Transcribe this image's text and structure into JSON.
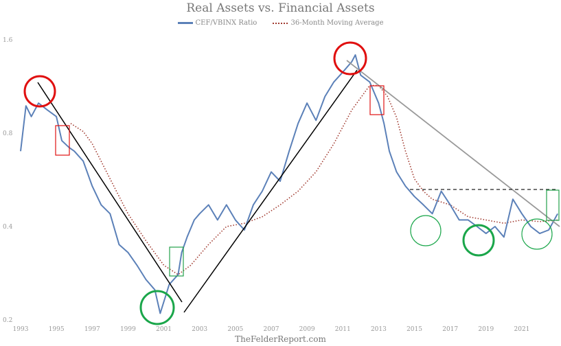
{
  "chart_data": {
    "type": "line",
    "title": "Real Assets vs. Financial Assets",
    "source": "TheFelderReport.com",
    "y_scale": "log",
    "ylim": [
      0.2,
      1.6
    ],
    "xlim": [
      1993,
      2023.1
    ],
    "y_ticks": [
      "1.6",
      "0.8",
      "0.4",
      "0.2"
    ],
    "x_ticks": [
      "1993",
      "1995",
      "1997",
      "1999",
      "2001",
      "2003",
      "2005",
      "2007",
      "2009",
      "2011",
      "2013",
      "2015",
      "2017",
      "2019",
      "2021"
    ],
    "legend_position": "top",
    "grid": false,
    "series": [
      {
        "name": "CEF/VBINX Ratio",
        "color": "#5b80b8",
        "x": [
          1993.0,
          1993.3,
          1993.6,
          1994.0,
          1994.5,
          1995.0,
          1995.3,
          1995.7,
          1996.0,
          1996.5,
          1997.0,
          1997.5,
          1998.0,
          1998.5,
          1999.0,
          1999.5,
          2000.0,
          2000.5,
          2000.8,
          2001.3,
          2001.8,
          2002.0,
          2002.3,
          2002.7,
          2003.0,
          2003.5,
          2004.0,
          2004.5,
          2005.0,
          2005.5,
          2006.0,
          2006.5,
          2007.0,
          2007.5,
          2008.0,
          2008.5,
          2009.0,
          2009.5,
          2010.0,
          2010.5,
          2011.0,
          2011.5,
          2011.7,
          2012.0,
          2012.5,
          2013.0,
          2013.3,
          2013.6,
          2014.0,
          2014.5,
          2015.0,
          2015.5,
          2016.0,
          2016.5,
          2017.0,
          2017.5,
          2018.0,
          2018.5,
          2019.0,
          2019.5,
          2020.0,
          2020.5,
          2021.0,
          2021.5,
          2022.0,
          2022.5,
          2023.0
        ],
        "y": [
          0.7,
          0.98,
          0.905,
          1.0,
          0.95,
          0.905,
          0.757,
          0.72,
          0.7,
          0.65,
          0.54,
          0.47,
          0.44,
          0.35,
          0.33,
          0.3,
          0.27,
          0.25,
          0.21,
          0.26,
          0.28,
          0.33,
          0.37,
          0.42,
          0.44,
          0.47,
          0.42,
          0.47,
          0.42,
          0.39,
          0.47,
          0.52,
          0.6,
          0.56,
          0.7,
          0.86,
          1.0,
          0.88,
          1.05,
          1.17,
          1.26,
          1.36,
          1.43,
          1.23,
          1.17,
          1.0,
          0.86,
          0.7,
          0.6,
          0.54,
          0.5,
          0.47,
          0.44,
          0.52,
          0.47,
          0.42,
          0.42,
          0.4,
          0.38,
          0.4,
          0.37,
          0.49,
          0.44,
          0.4,
          0.38,
          0.39,
          0.44
        ]
      },
      {
        "name": "36-Month Moving Average",
        "color": "#a0392e",
        "style": "dotted",
        "x": [
          1995.8,
          1996.5,
          1997.0,
          1998.0,
          1999.0,
          2000.0,
          2001.0,
          2001.8,
          2002.5,
          2003.5,
          2004.5,
          2005.5,
          2006.5,
          2007.5,
          2008.5,
          2009.5,
          2010.5,
          2011.5,
          2012.5,
          2013.0,
          2013.5,
          2014.0,
          2014.5,
          2015.0,
          2015.5,
          2016.0,
          2017.0,
          2018.0,
          2019.0,
          2020.0,
          2021.0,
          2022.0,
          2023.0
        ],
        "y": [
          0.86,
          0.81,
          0.74,
          0.57,
          0.44,
          0.36,
          0.3,
          0.28,
          0.3,
          0.35,
          0.4,
          0.41,
          0.43,
          0.47,
          0.52,
          0.6,
          0.74,
          0.95,
          1.14,
          1.14,
          1.05,
          0.9,
          0.7,
          0.57,
          0.52,
          0.49,
          0.47,
          0.43,
          0.42,
          0.41,
          0.42,
          0.415,
          0.42
        ]
      }
    ]
  }
}
